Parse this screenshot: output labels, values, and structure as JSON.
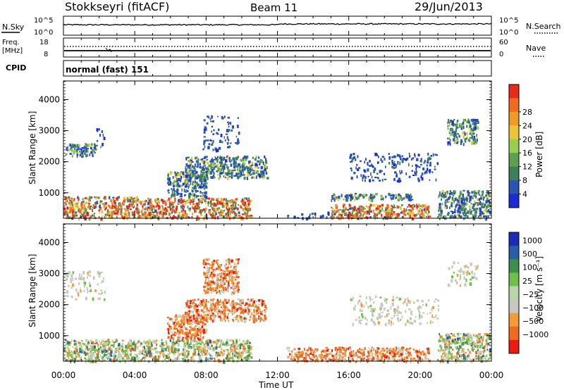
{
  "header": {
    "station": "Stokkseyri (fitACF)",
    "beam": "Beam 11",
    "date": "29/Jun/2013"
  },
  "top_panels": {
    "nsky_label": "N.Sky",
    "nsky_ticks": [
      "10^5",
      "10^0"
    ],
    "nsearch_label": "N.Search",
    "nsearch_ticks": [
      "10^5",
      "10^0"
    ],
    "freq_label_1": "Freq.",
    "freq_label_2": "[MHz]",
    "freq_ticks": [
      "18",
      "8"
    ],
    "nave_label": "Nave",
    "nave_ticks": [
      "60",
      "0"
    ],
    "cpid_label": "CPID",
    "cpid_value": "normal (fast) 151"
  },
  "colors": {
    "power": [
      "#1a2bd6",
      "#2a54b0",
      "#3e7f58",
      "#5fa050",
      "#98cf52",
      "#ebc43c",
      "#f09a2a",
      "#f06a20",
      "#e82a18"
    ],
    "velocity": [
      "#e81c12",
      "#f06a20",
      "#f49a38",
      "#c8c8c0",
      "#b8d6a8",
      "#6fbf48",
      "#3e8f4e",
      "#2a5ca8",
      "#1a2bb8"
    ]
  },
  "chart_data": [
    {
      "type": "heatmap",
      "title": "",
      "xlabel": "Time UT",
      "ylabel": "Slant Range [km]",
      "x_ticks": [
        "00:00",
        "04:00",
        "08:00",
        "12:00",
        "16:00",
        "20:00",
        "00:00"
      ],
      "x_range_hours": [
        0,
        24
      ],
      "y_ticks": [
        1000,
        2000,
        3000,
        4000
      ],
      "ylim": [
        180,
        4600
      ],
      "colorbar": {
        "label": "Power [dB]",
        "ticks": [
          "4",
          "8",
          "12",
          "16",
          "20",
          "24",
          "28"
        ],
        "range": [
          0,
          30
        ]
      },
      "scatter_regions": [
        {
          "t": [
            0.0,
            4.3
          ],
          "r": [
            200,
            900
          ],
          "level": "high"
        },
        {
          "t": [
            4.3,
            10.5
          ],
          "r": [
            200,
            850
          ],
          "level": "high"
        },
        {
          "t": [
            0.1,
            1.8
          ],
          "r": [
            2200,
            2600
          ],
          "level": "mid"
        },
        {
          "t": [
            1.7,
            2.3
          ],
          "r": [
            2500,
            3100
          ],
          "level": "low"
        },
        {
          "t": [
            5.8,
            8.0
          ],
          "r": [
            900,
            1700
          ],
          "level": "mid"
        },
        {
          "t": [
            6.8,
            11.4
          ],
          "r": [
            1500,
            2200
          ],
          "level": "mid"
        },
        {
          "t": [
            7.8,
            9.8
          ],
          "r": [
            2400,
            3500
          ],
          "level": "low"
        },
        {
          "t": [
            12.5,
            16.0
          ],
          "r": [
            200,
            400
          ],
          "level": "low"
        },
        {
          "t": [
            15.0,
            20.5
          ],
          "r": [
            200,
            650
          ],
          "level": "high"
        },
        {
          "t": [
            15.0,
            19.5
          ],
          "r": [
            800,
            1000
          ],
          "level": "mid"
        },
        {
          "t": [
            16.0,
            21.0
          ],
          "r": [
            1400,
            2300
          ],
          "level": "low"
        },
        {
          "t": [
            21.0,
            23.9
          ],
          "r": [
            200,
            1100
          ],
          "level": "mid"
        },
        {
          "t": [
            21.5,
            23.2
          ],
          "r": [
            2600,
            3400
          ],
          "level": "mid"
        }
      ]
    },
    {
      "type": "heatmap",
      "title": "",
      "xlabel": "Time UT",
      "ylabel": "Slant Range [km]",
      "x_ticks": [
        "00:00",
        "04:00",
        "08:00",
        "12:00",
        "16:00",
        "20:00",
        "00:00"
      ],
      "x_range_hours": [
        0,
        24
      ],
      "y_ticks": [
        1000,
        2000,
        3000,
        4000
      ],
      "ylim": [
        180,
        4600
      ],
      "colorbar": {
        "label": "Velocity [m s⁻¹]",
        "ticks": [
          "1000",
          "500",
          "100",
          "25",
          "−25",
          "−100",
          "−500",
          "−1000"
        ],
        "range": [
          -1000,
          1000
        ]
      },
      "scatter_regions": [
        {
          "t": [
            0.0,
            10.5
          ],
          "r": [
            200,
            900
          ],
          "level": "mixed"
        },
        {
          "t": [
            0.1,
            2.3
          ],
          "r": [
            2200,
            3100
          ],
          "level": "slow"
        },
        {
          "t": [
            5.8,
            8.0
          ],
          "r": [
            900,
            1700
          ],
          "level": "away"
        },
        {
          "t": [
            6.8,
            11.4
          ],
          "r": [
            1500,
            2200
          ],
          "level": "away"
        },
        {
          "t": [
            7.8,
            9.8
          ],
          "r": [
            2400,
            3500
          ],
          "level": "away"
        },
        {
          "t": [
            12.5,
            20.5
          ],
          "r": [
            200,
            650
          ],
          "level": "away"
        },
        {
          "t": [
            16.0,
            21.0
          ],
          "r": [
            1400,
            2300
          ],
          "level": "slow"
        },
        {
          "t": [
            21.0,
            23.9
          ],
          "r": [
            200,
            1100
          ],
          "level": "mixed"
        },
        {
          "t": [
            21.5,
            23.2
          ],
          "r": [
            2600,
            3400
          ],
          "level": "slow"
        }
      ]
    }
  ]
}
